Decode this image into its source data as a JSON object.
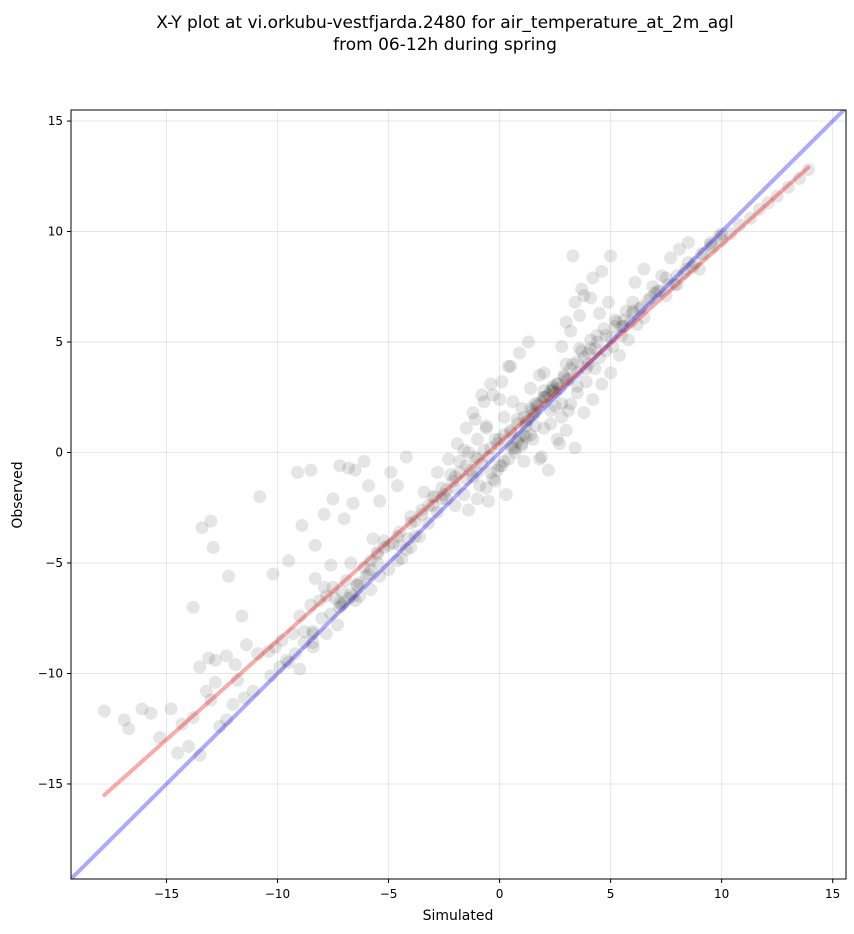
{
  "chart_data": {
    "type": "scatter",
    "title_line1": "X-Y plot at vi.orkubu-vestfjarda.2480 for air_temperature_at_2m_agl",
    "title_line2": "from 06-12h during spring",
    "xlabel": "Simulated",
    "ylabel": "Observed",
    "xlim": [
      -19.3,
      15.6
    ],
    "ylim": [
      -19.3,
      15.5
    ],
    "xticks": [
      -15,
      -10,
      -5,
      0,
      5,
      10,
      15
    ],
    "yticks": [
      -15,
      -10,
      -5,
      0,
      5,
      10,
      15
    ],
    "xtick_labels": [
      "−15",
      "−10",
      "−5",
      "0",
      "5",
      "10",
      "15"
    ],
    "ytick_labels": [
      "−15",
      "−10",
      "−5",
      "0",
      "5",
      "10",
      "15"
    ],
    "grid": true,
    "colors": {
      "points": "#000000",
      "identity_line": "#0000ee",
      "fit_line": "#ee0000"
    },
    "identity_line": {
      "x": [
        -19.3,
        15.6
      ],
      "y": [
        -19.3,
        15.6
      ]
    },
    "fit_line": {
      "x": [
        -17.8,
        13.9
      ],
      "y": [
        -15.5,
        12.9
      ]
    },
    "series": [
      {
        "x": [
          -17.8,
          -16.9,
          -16.7,
          -16.1,
          -15.7,
          -15.3,
          -14.8,
          -14.5,
          -14.3,
          -14.0,
          -13.8,
          -13.5,
          -13.2,
          -13.0,
          -12.8,
          -12.6,
          -12.3,
          -12.0,
          -11.8,
          -11.5,
          -11.1,
          -13.5,
          -13.1,
          -12.8,
          -12.3,
          -11.9,
          -11.4,
          -10.9,
          -10.4,
          -10.1,
          -9.8,
          -9.3,
          -8.8,
          -8.4,
          -9.0,
          -8.5,
          -8.1,
          -7.8,
          -7.5,
          -7.3,
          -10.8,
          -12.2,
          -13.0,
          -13.4,
          -13.8,
          -12.9,
          -11.6,
          -10.2,
          -9.5,
          -9.1,
          -8.9,
          -8.5,
          -8.3,
          -7.2,
          -6.8,
          -6.5,
          -6.1,
          -7.9,
          -7.5,
          -7.0,
          -6.6,
          -5.9,
          -5.7,
          -5.4,
          -4.9,
          -4.6,
          -4.2,
          -8.3,
          -7.9,
          -7.6,
          -7.4,
          -7.1,
          -6.9,
          -6.7,
          -6.5,
          -6.3,
          -6.1,
          -5.8,
          -5.5,
          -5.2,
          -4.8,
          -4.5,
          -4.1,
          -3.8,
          -3.5,
          -3.2,
          -2.9,
          -2.6,
          -2.4,
          -2.1,
          -1.8,
          -1.5,
          -1.3,
          -1.0,
          -0.7,
          -0.4,
          -0.1,
          0.2,
          0.5,
          0.8,
          1.1,
          1.4,
          1.7,
          2.0,
          2.3,
          2.6,
          2.9,
          3.2,
          3.5,
          3.8,
          4.1,
          4.4,
          4.8,
          5.2,
          5.6,
          6.0,
          6.4,
          6.8,
          7.2,
          7.6,
          8.0,
          8.4,
          8.8,
          9.2,
          9.6,
          10.0,
          10.4,
          10.8,
          11.3,
          11.7,
          12.1,
          12.5,
          13.0,
          13.5,
          13.9,
          -9.0,
          -8.4,
          -7.8,
          -7.2,
          -6.6,
          -6.0,
          -5.5,
          -5.0,
          -4.5,
          -4.0,
          -3.5,
          -3.0,
          -2.5,
          -2.0,
          -1.5,
          -1.0,
          -0.5,
          0.0,
          0.5,
          1.0,
          1.5,
          2.0,
          2.5,
          3.0,
          3.5,
          4.0,
          4.5,
          5.0,
          5.5,
          6.0,
          6.5,
          7.0,
          7.5,
          8.0,
          8.5,
          9.0,
          9.5,
          10.0,
          -1.2,
          -0.8,
          -0.4,
          0.0,
          0.4,
          0.8,
          1.2,
          1.6,
          2.0,
          2.4,
          2.8,
          3.2,
          3.6,
          -0.9,
          -0.5,
          -0.1,
          0.3,
          0.7,
          1.1,
          1.5,
          1.9,
          2.3,
          2.7,
          3.1,
          3.5,
          3.9,
          4.3,
          -1.6,
          -1.1,
          -0.6,
          -0.2,
          0.2,
          0.6,
          1.0,
          1.4,
          1.8,
          2.2,
          2.6,
          3.0,
          1.2,
          1.6,
          2.0,
          2.4,
          2.8,
          1.8,
          2.2,
          2.6,
          3.0,
          3.4,
          3.8,
          4.2,
          4.6,
          5.0,
          5.4,
          5.8,
          6.2,
          3.3,
          3.7,
          4.1,
          4.5,
          4.9,
          5.3,
          5.7,
          6.1,
          6.5,
          6.9,
          7.3,
          7.7,
          8.1,
          8.5,
          -1.4,
          -1.0,
          -0.6,
          -0.2,
          0.2,
          0.6,
          1.0,
          1.4,
          -2.3,
          -1.9,
          -1.5,
          -1.1,
          -0.7,
          -0.3,
          0.1,
          0.5,
          0.9,
          1.3,
          -3.0,
          -2.6,
          -2.2,
          -1.8,
          -1.4,
          -1.0,
          -0.6,
          -4.4,
          -4.0,
          -3.6,
          -3.2,
          -2.8,
          -2.4,
          -2.0,
          -5.8,
          -5.4,
          -5.0,
          -4.6,
          -4.2,
          -3.8,
          -7.1,
          -6.7,
          -6.3,
          -5.9,
          -5.5,
          -8.4,
          -8.0,
          -7.6,
          -7.2,
          -6.8,
          -6.4,
          -9.6,
          -9.2,
          -8.8,
          -8.4,
          -10.3,
          -9.9,
          -9.5,
          -0.3,
          0.1,
          0.5,
          0.9,
          1.3,
          1.7,
          2.1,
          2.5,
          2.9,
          3.3,
          3.7,
          4.1,
          0.7,
          1.1,
          1.5,
          1.9,
          2.3,
          2.7,
          3.1,
          3.5,
          3.9,
          4.3,
          4.7,
          5.1,
          5.5,
          5.9,
          6.3,
          6.7,
          7.1,
          7.5,
          7.9,
          8.3,
          8.7,
          9.1,
          9.5,
          9.9,
          3.0,
          3.4,
          3.8,
          4.2,
          4.6,
          5.0,
          -2.8,
          -3.4,
          -4.0,
          -4.6,
          -5.2,
          -5.8,
          -6.4,
          -7.0,
          -2.0,
          -1.6,
          -1.2,
          -0.8,
          -0.4,
          0.0,
          0.4,
          0.8,
          1.2,
          1.6,
          2.0,
          2.4,
          2.8,
          3.2,
          3.6,
          4.0,
          4.4,
          4.8,
          5.2,
          5.6,
          6.0
        ],
        "y": [
          -11.7,
          -12.1,
          -12.5,
          -11.6,
          -11.8,
          -12.9,
          -11.6,
          -13.6,
          -12.3,
          -13.3,
          -12.0,
          -13.7,
          -10.8,
          -11.2,
          -10.4,
          -12.4,
          -12.1,
          -11.4,
          -10.3,
          -11.1,
          -10.8,
          -9.7,
          -9.3,
          -9.4,
          -9.2,
          -9.6,
          -8.7,
          -9.1,
          -9.0,
          -8.8,
          -8.5,
          -8.2,
          -8.1,
          -8.8,
          -7.4,
          -6.9,
          -6.7,
          -6.5,
          -6.1,
          -7.8,
          -2.0,
          -5.6,
          -3.1,
          -3.4,
          -7.0,
          -4.3,
          -7.4,
          -5.5,
          -4.9,
          -0.9,
          -3.3,
          -0.8,
          -4.2,
          -0.6,
          -0.7,
          -0.8,
          -0.4,
          -2.8,
          -2.1,
          -3.0,
          -2.3,
          -1.5,
          -3.9,
          -2.2,
          -0.9,
          -1.5,
          -0.2,
          -5.7,
          -6.1,
          -5.1,
          -6.6,
          -6.3,
          -5.8,
          -5.0,
          -6.7,
          -6.5,
          -5.2,
          -4.9,
          -4.5,
          -4.0,
          -4.1,
          -4.2,
          -3.9,
          -3.1,
          -2.8,
          -2.4,
          -2.0,
          -2.1,
          -1.7,
          -1.3,
          -0.9,
          -0.6,
          -0.8,
          -0.3,
          0.1,
          0.2,
          0.4,
          0.8,
          1.0,
          1.3,
          1.6,
          2.0,
          2.2,
          2.5,
          2.8,
          3.1,
          3.4,
          3.8,
          4.1,
          4.3,
          4.7,
          5.0,
          5.3,
          5.7,
          6.0,
          6.3,
          6.6,
          7.0,
          7.3,
          7.6,
          8.0,
          8.3,
          8.6,
          9.0,
          9.3,
          9.6,
          9.9,
          10.3,
          10.6,
          11.0,
          11.3,
          11.6,
          12.0,
          12.4,
          12.8,
          -9.8,
          -8.6,
          -8.2,
          -7.0,
          -6.5,
          -5.6,
          -4.6,
          -4.2,
          -3.6,
          -3.2,
          -2.6,
          -2.4,
          -1.9,
          -1.1,
          -1.2,
          -0.9,
          -0.2,
          -0.6,
          0.9,
          0.3,
          1.9,
          2.8,
          2.1,
          3.3,
          3.6,
          4.5,
          4.3,
          5.2,
          5.7,
          6.4,
          6.1,
          7.2,
          7.9,
          7.6,
          8.6,
          8.3,
          9.5,
          9.9,
          1.8,
          2.6,
          3.1,
          2.4,
          3.9,
          0.5,
          1.2,
          2.2,
          3.6,
          2.9,
          4.8,
          5.5,
          6.2,
          -1.5,
          -2.2,
          -0.8,
          -1.9,
          0.2,
          -0.4,
          0.6,
          -0.2,
          1.3,
          0.4,
          1.9,
          2.7,
          3.2,
          3.8,
          0.1,
          -0.2,
          1.1,
          0.6,
          1.6,
          2.3,
          2.0,
          2.9,
          3.5,
          2.6,
          3.1,
          4.0,
          1.4,
          1.8,
          2.5,
          3.0,
          2.2,
          -0.3,
          -0.8,
          0.6,
          1.0,
          0.2,
          1.8,
          2.4,
          3.1,
          3.6,
          4.4,
          5.1,
          5.8,
          8.9,
          7.4,
          7.0,
          6.3,
          6.8,
          5.9,
          6.4,
          7.7,
          8.3,
          7.5,
          8.0,
          8.8,
          9.2,
          9.5,
          -2.6,
          -2.1,
          -1.6,
          -1.3,
          -0.4,
          0.2,
          0.4,
          0.8,
          -0.3,
          0.4,
          1.1,
          1.5,
          2.3,
          2.6,
          3.2,
          3.9,
          4.5,
          5.0,
          -2.0,
          -1.6,
          -1.0,
          -0.4,
          0.0,
          0.6,
          1.2,
          -4.8,
          -4.3,
          -3.8,
          -3.2,
          -2.7,
          -2.1,
          -1.6,
          -6.2,
          -5.6,
          -5.3,
          -4.9,
          -4.4,
          -3.8,
          -6.9,
          -6.4,
          -5.9,
          -5.5,
          -5.0,
          -8.1,
          -7.5,
          -7.3,
          -6.8,
          -6.6,
          -6.0,
          -9.4,
          -9.1,
          -8.6,
          -8.2,
          -10.1,
          -9.7,
          -9.5,
          -1.2,
          -0.6,
          0.3,
          0.7,
          1.5,
          2.1,
          2.5,
          2.7,
          3.5,
          4.0,
          4.6,
          5.1,
          0.0,
          0.8,
          1.7,
          2.3,
          1.9,
          2.9,
          3.3,
          3.0,
          3.8,
          4.7,
          5.6,
          4.8,
          5.3,
          5.9,
          6.5,
          6.9,
          7.3,
          7.1,
          7.6,
          8.1,
          8.4,
          9.0,
          9.4,
          9.8,
          5.9,
          6.8,
          7.1,
          7.9,
          8.2,
          8.9,
          -0.9,
          -1.8,
          -2.9,
          -3.8,
          -4.3,
          -5.3,
          -6.0,
          -6.8,
          -2.4,
          -1.9,
          -1.1,
          -0.5,
          -0.9,
          0.6,
          -0.3,
          1.5,
          0.7,
          1.2,
          1.1,
          2.8,
          1.6,
          2.2,
          4.7,
          4.0,
          5.3,
          4.6,
          6.0,
          5.7,
          6.8
        ]
      }
    ]
  }
}
